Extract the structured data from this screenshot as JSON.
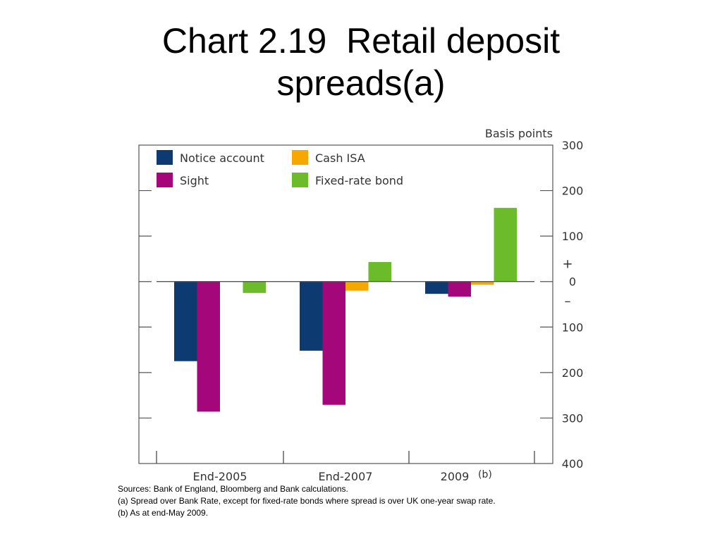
{
  "title": {
    "line1": "Chart 2.19  Retail deposit",
    "line2": "spreads(a)"
  },
  "chart_data": {
    "type": "bar",
    "unit_label": "Basis points",
    "categories": [
      "End-2005",
      "End-2007",
      "2009"
    ],
    "category_superscripts": [
      "",
      "",
      "(b)"
    ],
    "series": [
      {
        "name": "Notice account",
        "color": "#0e3a72",
        "values": [
          -175,
          -152,
          -27
        ]
      },
      {
        "name": "Sight",
        "color": "#a3077a",
        "values": [
          -286,
          -271,
          -33
        ]
      },
      {
        "name": "Cash ISA",
        "color": "#f7a800",
        "values": [
          null,
          -20,
          -7
        ]
      },
      {
        "name": "Fixed-rate bond",
        "color": "#6cbb2a",
        "values": [
          -25,
          43,
          162
        ]
      }
    ],
    "ylim": [
      -400,
      300
    ],
    "y_ticks": [
      300,
      200,
      100,
      0,
      -100,
      -200,
      -300,
      -400
    ],
    "y_tick_labels": [
      "300",
      "200",
      "100",
      "0",
      "100",
      "200",
      "300",
      "400"
    ],
    "sign_labels": {
      "positive": "+",
      "negative": "–"
    },
    "legend_placement": "top-left",
    "grid": false
  },
  "footnotes": {
    "sources": "Sources:  Bank of England, Bloomberg and Bank calculations.",
    "note_a": "(a) Spread over Bank Rate, except for fixed-rate bonds where spread is over UK one-year swap rate.",
    "note_b": "(b) As at end-May 2009."
  }
}
